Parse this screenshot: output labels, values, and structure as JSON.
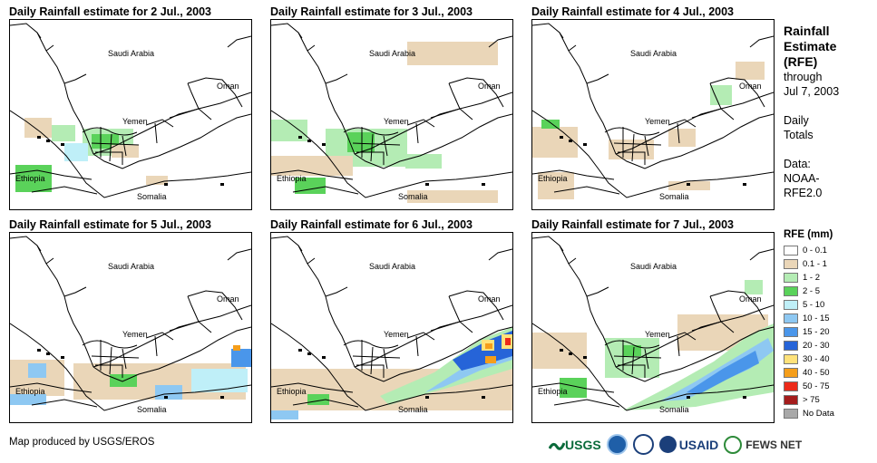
{
  "panels": [
    {
      "title": "Daily Rainfall estimate for 2 Jul., 2003",
      "labels": {
        "saudi": "Saudi Arabia",
        "oman": "Oman",
        "yemen": "Yemen",
        "ethiopia": "Ethiopia",
        "somalia": "Somalia"
      }
    },
    {
      "title": "Daily Rainfall estimate for 3 Jul., 2003",
      "labels": {
        "saudi": "Saudi Arabia",
        "oman": "Oman",
        "yemen": "Yemen",
        "ethiopia": "Ethiopia",
        "somalia": "Somalia"
      }
    },
    {
      "title": "Daily Rainfall estimate for 4 Jul., 2003",
      "labels": {
        "saudi": "Saudi Arabia",
        "oman": "Oman",
        "yemen": "Yemen",
        "ethiopia": "Ethiopia",
        "somalia": "Somalia"
      }
    },
    {
      "title": "Daily Rainfall estimate for 5 Jul., 2003",
      "labels": {
        "saudi": "Saudi Arabia",
        "oman": "Oman",
        "yemen": "Yemen",
        "ethiopia": "Ethiopia",
        "somalia": "Somalia"
      }
    },
    {
      "title": "Daily Rainfall estimate for 6 Jul., 2003",
      "labels": {
        "saudi": "Saudi Arabia",
        "oman": "Oman",
        "yemen": "Yemen",
        "ethiopia": "Ethiopia",
        "somalia": "Somalia"
      }
    },
    {
      "title": "Daily Rainfall estimate for 7 Jul., 2003",
      "labels": {
        "saudi": "Saudi Arabia",
        "oman": "Oman",
        "yemen": "Yemen",
        "ethiopia": "Ethiopia",
        "somalia": "Somalia"
      }
    }
  ],
  "side": {
    "title_lines": [
      "Rainfall",
      "Estimate",
      "(RFE)"
    ],
    "through": "through",
    "date": "Jul 7, 2003",
    "daily": "Daily",
    "totals": "Totals",
    "data_label": "Data:",
    "data_source_1": "NOAA-",
    "data_source_2": "RFE2.0"
  },
  "legend": {
    "title": "RFE (mm)",
    "items": [
      {
        "label": "0 - 0.1",
        "color": "#ffffff"
      },
      {
        "label": "0.1 - 1",
        "color": "#ead6b8"
      },
      {
        "label": "1 - 2",
        "color": "#b4ecb4"
      },
      {
        "label": "2 - 5",
        "color": "#5ad25a"
      },
      {
        "label": "5 - 10",
        "color": "#bfeff8"
      },
      {
        "label": "10 - 15",
        "color": "#8ec8f2"
      },
      {
        "label": "15 - 20",
        "color": "#4a96ea"
      },
      {
        "label": "20 - 30",
        "color": "#2664d8"
      },
      {
        "label": "30 - 40",
        "color": "#ffe27a"
      },
      {
        "label": "40 - 50",
        "color": "#f59e1a"
      },
      {
        "label": "50 - 75",
        "color": "#ec2a1a"
      },
      {
        "label": "> 75",
        "color": "#a41c1c"
      },
      {
        "label": "No Data",
        "color": "#a8a8a8"
      }
    ]
  },
  "footer": {
    "credit": "Map produced by USGS/EROS",
    "logos": {
      "usgs": "USGS",
      "usaid": "USAID",
      "fews": "FEWS NET"
    }
  }
}
